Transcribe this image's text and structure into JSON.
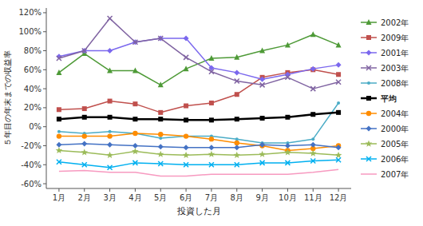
{
  "chart_data": {
    "type": "line",
    "xlabel": "投資した月",
    "ylabel": "５年目の年末までの収益率",
    "categories": [
      "1月",
      "2月",
      "3月",
      "4月",
      "5月",
      "6月",
      "7月",
      "8月",
      "9月",
      "10月",
      "11月",
      "12月"
    ],
    "series": [
      {
        "name": "2002年",
        "color": "#4e9a37",
        "marker": "triangle",
        "values": [
          0.57,
          0.77,
          0.59,
          0.59,
          0.44,
          0.61,
          0.72,
          0.73,
          0.8,
          0.86,
          0.97,
          0.86
        ]
      },
      {
        "name": "2009年",
        "color": "#c0504d",
        "marker": "square",
        "values": [
          0.18,
          0.19,
          0.27,
          0.24,
          0.15,
          0.22,
          0.25,
          0.34,
          0.52,
          0.57,
          0.6,
          0.55
        ]
      },
      {
        "name": "2001年",
        "color": "#7b68ee",
        "marker": "diamond",
        "values": [
          0.74,
          0.8,
          0.8,
          0.89,
          0.93,
          0.93,
          0.62,
          0.57,
          0.5,
          0.55,
          0.61,
          0.65
        ]
      },
      {
        "name": "2003年",
        "color": "#8064a2",
        "marker": "x",
        "values": [
          0.72,
          0.8,
          1.14,
          0.89,
          0.93,
          0.73,
          0.58,
          0.48,
          0.44,
          0.52,
          0.4,
          0.47
        ]
      },
      {
        "name": "2008年",
        "color": "#4bacc6",
        "marker": "point",
        "values": [
          -0.05,
          -0.07,
          -0.05,
          -0.07,
          -0.12,
          -0.1,
          -0.1,
          -0.13,
          -0.17,
          -0.17,
          -0.13,
          0.25
        ]
      },
      {
        "name": "平均",
        "color": "#000000",
        "marker": "square",
        "values": [
          0.08,
          0.1,
          0.1,
          0.08,
          0.08,
          0.07,
          0.07,
          0.08,
          0.09,
          0.1,
          0.13,
          0.15
        ]
      },
      {
        "name": "2004年",
        "color": "#ff8c00",
        "marker": "circle",
        "values": [
          -0.1,
          -0.1,
          -0.1,
          -0.07,
          -0.08,
          -0.1,
          -0.13,
          -0.17,
          -0.2,
          -0.25,
          -0.23,
          -0.2
        ]
      },
      {
        "name": "2000年",
        "color": "#4472c4",
        "marker": "diamond",
        "values": [
          -0.19,
          -0.18,
          -0.19,
          -0.2,
          -0.21,
          -0.22,
          -0.22,
          -0.22,
          -0.19,
          -0.2,
          -0.19,
          -0.22
        ]
      },
      {
        "name": "2005年",
        "color": "#9bbb59",
        "marker": "star",
        "values": [
          -0.25,
          -0.27,
          -0.3,
          -0.26,
          -0.29,
          -0.3,
          -0.29,
          -0.3,
          -0.29,
          -0.27,
          -0.28,
          -0.3
        ]
      },
      {
        "name": "2006年",
        "color": "#00b0f0",
        "marker": "x",
        "values": [
          -0.37,
          -0.4,
          -0.43,
          -0.38,
          -0.39,
          -0.4,
          -0.4,
          -0.4,
          -0.38,
          -0.38,
          -0.36,
          -0.35
        ]
      },
      {
        "name": "2007年",
        "color": "#f79ac0",
        "marker": "none",
        "values": [
          -0.47,
          -0.46,
          -0.48,
          -0.48,
          -0.52,
          -0.52,
          -0.5,
          -0.5,
          -0.5,
          -0.5,
          -0.48,
          -0.45
        ]
      }
    ],
    "ylim": [
      -0.65,
      1.25
    ],
    "yticks": [
      {
        "value": -0.6,
        "label": "-60%"
      },
      {
        "value": -0.4,
        "label": "-40%"
      },
      {
        "value": -0.2,
        "label": "-20%"
      },
      {
        "value": 0.0,
        "label": "0%"
      },
      {
        "value": 0.2,
        "label": "20%"
      },
      {
        "value": 0.4,
        "label": "40%"
      },
      {
        "value": 0.6,
        "label": "60%"
      },
      {
        "value": 0.8,
        "label": "80%"
      },
      {
        "value": 1.0,
        "label": "100%"
      },
      {
        "value": 1.2,
        "label": "120%"
      }
    ],
    "grid": false,
    "legend": "right"
  }
}
